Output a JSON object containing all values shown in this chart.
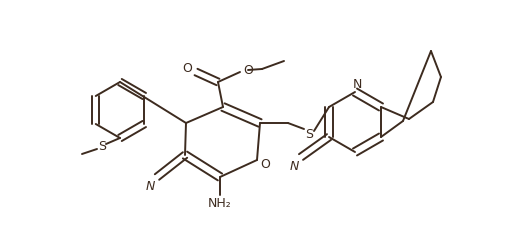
{
  "background_color": "#ffffff",
  "line_color": "#3d2b1f",
  "line_width": 1.4,
  "figsize": [
    5.1,
    2.51
  ],
  "dpi": 100,
  "xlim": [
    0,
    510
  ],
  "ylim": [
    0,
    251
  ]
}
